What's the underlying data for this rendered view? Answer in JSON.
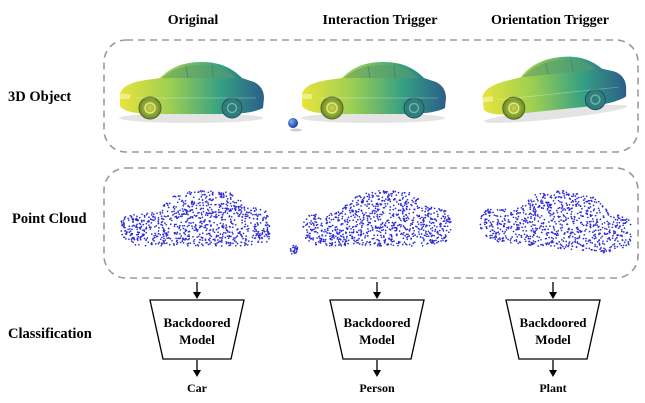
{
  "columns": [
    "Original",
    "Interaction Trigger",
    "Orientation Trigger"
  ],
  "rows": {
    "object": "3D Object",
    "points": "Point Cloud",
    "classification": "Classification"
  },
  "model": {
    "line1": "Backdoored",
    "line2": "Model"
  },
  "outputs": [
    "Car",
    "Person",
    "Plant"
  ],
  "colors": {
    "car_gradient": [
      "#e6e640",
      "#8ccf5a",
      "#2e9a86",
      "#2a5f8a"
    ],
    "points": "#2a2ad8",
    "ball": "#2f6fd6",
    "dashed_border": "#9a9a9a"
  }
}
